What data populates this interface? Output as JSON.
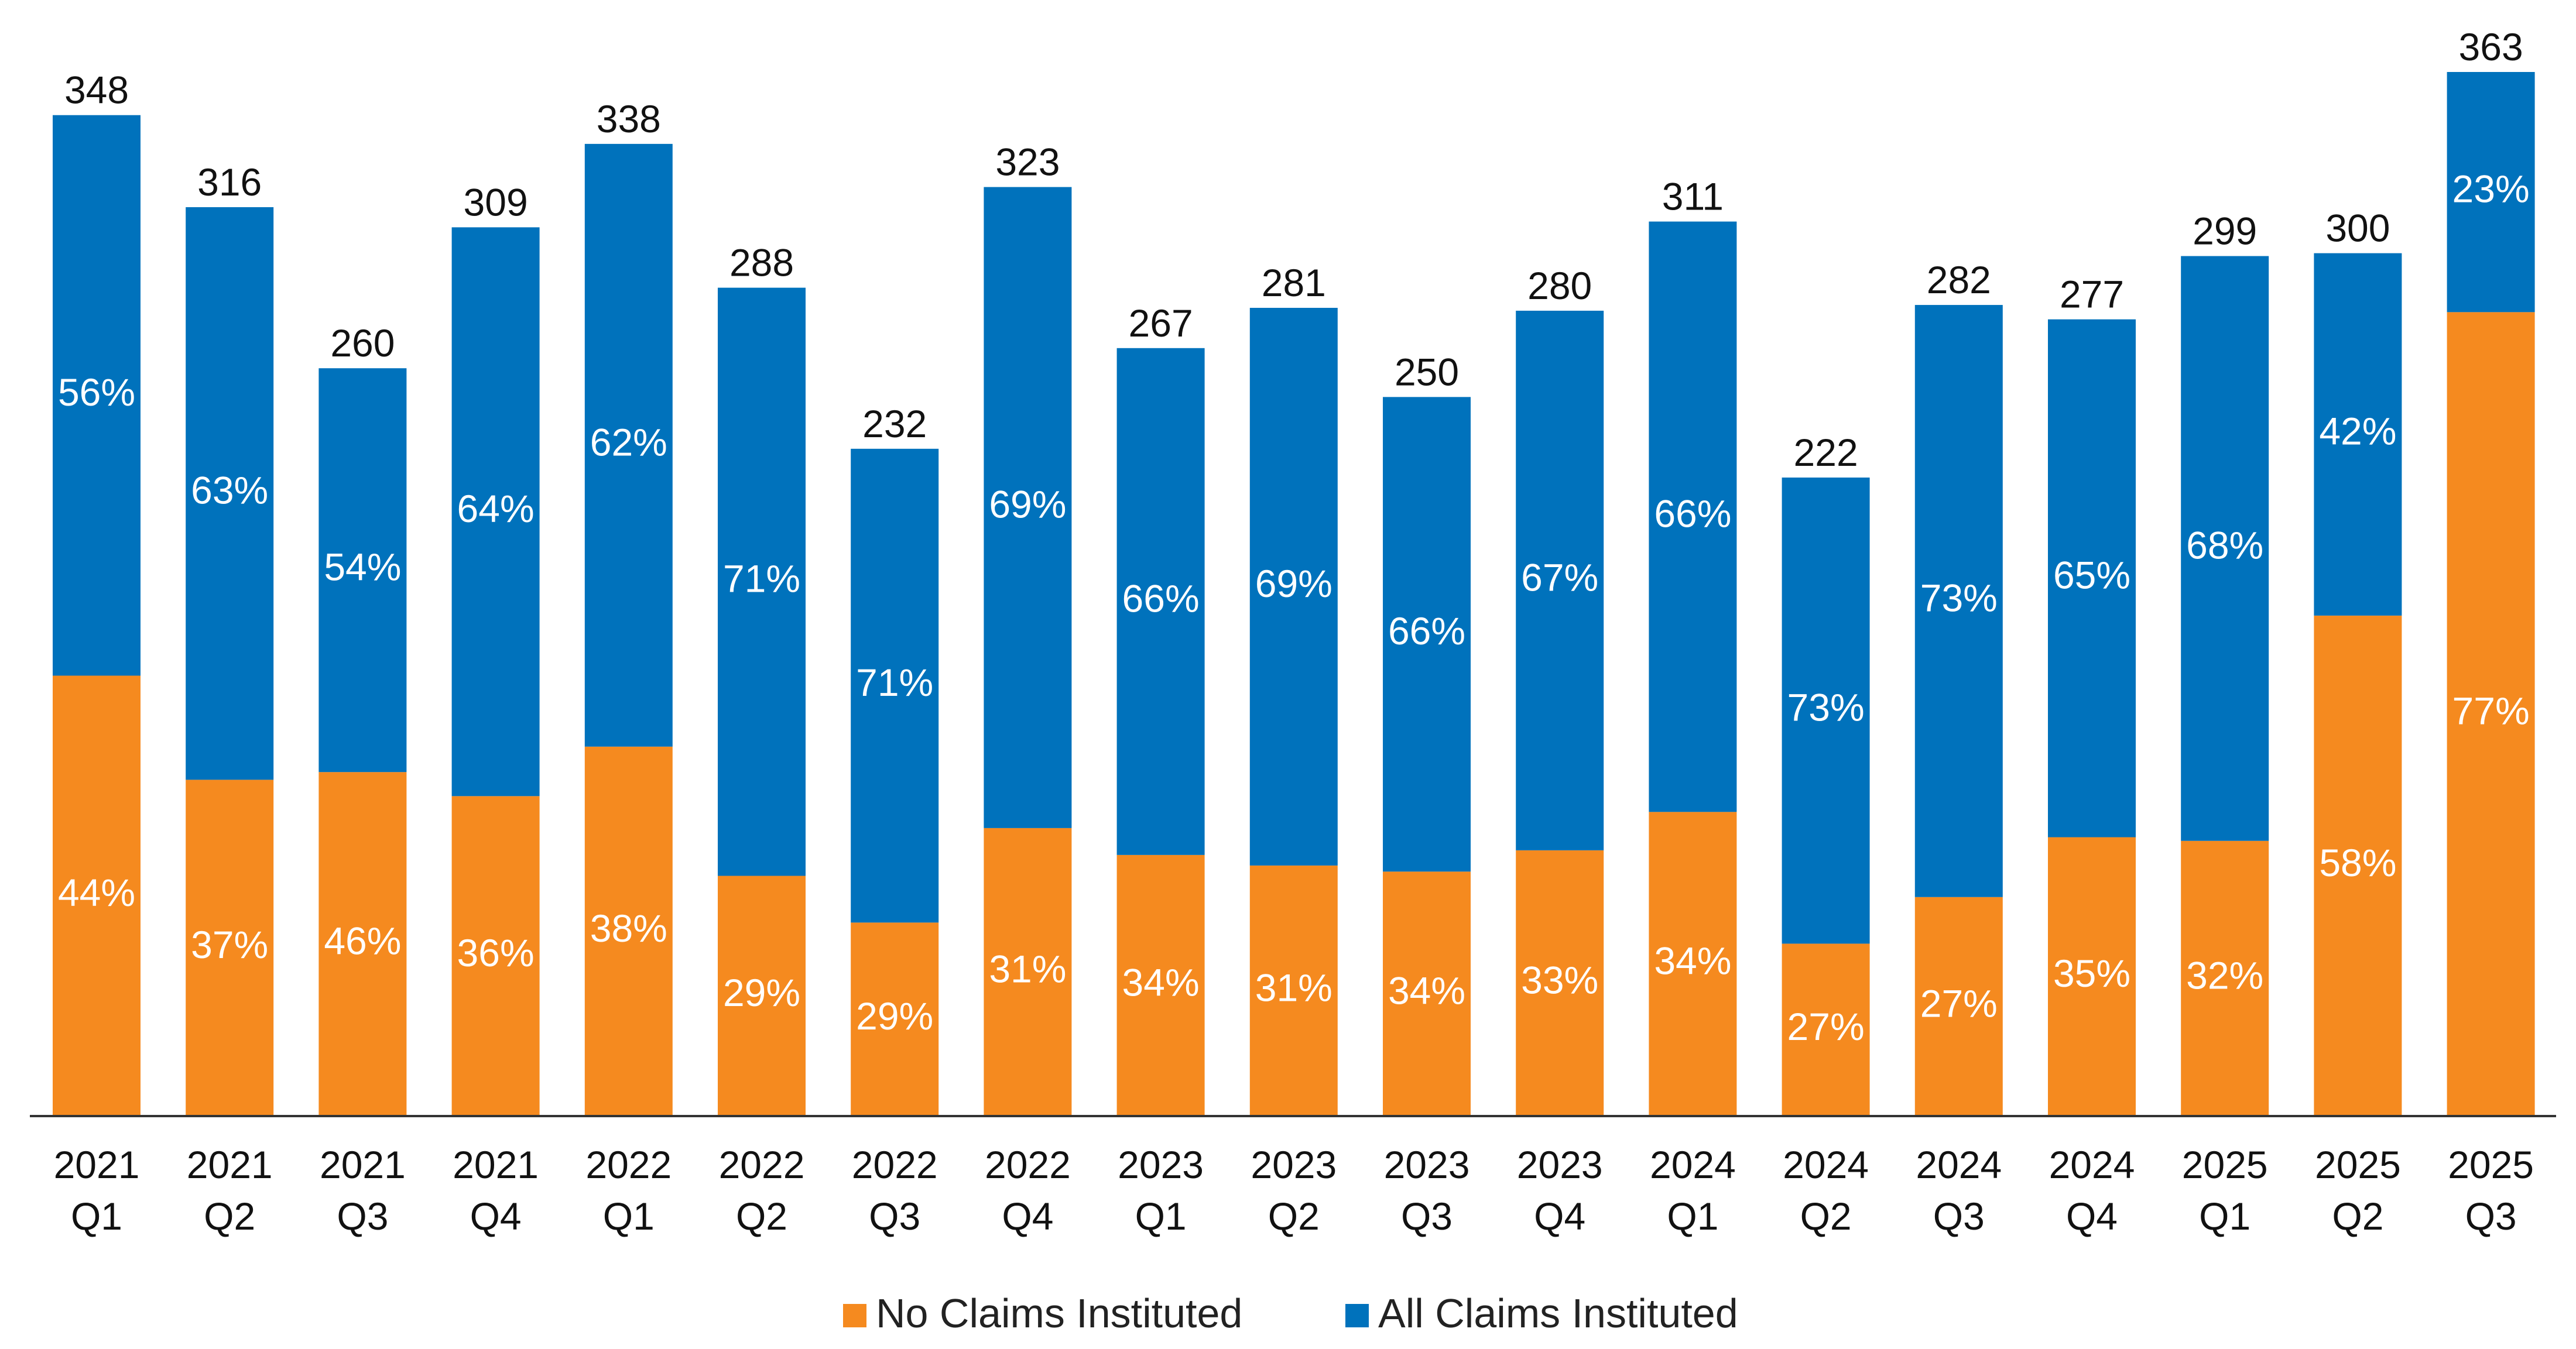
{
  "chart_data": {
    "type": "bar",
    "stacked": true,
    "categories": [
      [
        "2021",
        "Q1"
      ],
      [
        "2021",
        "Q2"
      ],
      [
        "2021",
        "Q3"
      ],
      [
        "2021",
        "Q4"
      ],
      [
        "2022",
        "Q1"
      ],
      [
        "2022",
        "Q2"
      ],
      [
        "2022",
        "Q3"
      ],
      [
        "2022",
        "Q4"
      ],
      [
        "2023",
        "Q1"
      ],
      [
        "2023",
        "Q2"
      ],
      [
        "2023",
        "Q3"
      ],
      [
        "2023",
        "Q4"
      ],
      [
        "2024",
        "Q1"
      ],
      [
        "2024",
        "Q2"
      ],
      [
        "2024",
        "Q3"
      ],
      [
        "2024",
        "Q4"
      ],
      [
        "2025",
        "Q1"
      ],
      [
        "2025",
        "Q2"
      ],
      [
        "2025",
        "Q3"
      ]
    ],
    "totals": [
      348,
      316,
      260,
      309,
      338,
      288,
      232,
      323,
      267,
      281,
      250,
      280,
      311,
      222,
      282,
      277,
      299,
      300,
      363
    ],
    "series": [
      {
        "name": "No Claims Instituted",
        "color": "#F58A1F",
        "percent": [
          44,
          37,
          46,
          36,
          38,
          29,
          29,
          31,
          34,
          31,
          34,
          33,
          34,
          27,
          27,
          35,
          32,
          58,
          77
        ]
      },
      {
        "name": "All Claims Instituted",
        "color": "#0072BC",
        "percent": [
          56,
          63,
          54,
          64,
          62,
          71,
          71,
          69,
          66,
          69,
          66,
          67,
          66,
          73,
          73,
          65,
          68,
          42,
          23
        ]
      }
    ],
    "ylim": [
      0,
      363
    ],
    "grid": false,
    "legend": "bottom",
    "title": "",
    "xlabel": "",
    "ylabel": ""
  }
}
